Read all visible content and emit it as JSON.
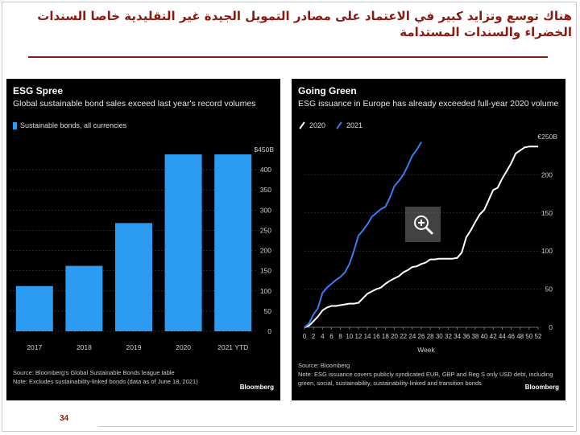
{
  "header": {
    "title": "هناك توسع وتزايد كبير في الاعتماد على مصادر التمويل الجيدة غير التقليدية خاصا السندات الخضراء والسندات المستدامة"
  },
  "page_number": "34",
  "colors": {
    "heading": "#8b1a10",
    "bar": "#2b9cf2",
    "series_2020": "#ffffff",
    "series_2021": "#3a7bf0",
    "panel_bg": "#000000"
  },
  "left_panel": {
    "title": "ESG Spree",
    "subtitle": "Global sustainable bond sales exceed last year's record volumes",
    "legend": "Sustainable bonds, all currencies",
    "footnote1": "Source: Bloomberg's Global Sustainable Bonds league table",
    "footnote2": "Note: Excludes sustainability-linked bonds (data as of June 18, 2021)",
    "brand": "Bloomberg"
  },
  "right_panel": {
    "title": "Going Green",
    "subtitle": "ESG issuance in Europe has already exceeded full-year 2020 volume",
    "legend_2020": "2020",
    "legend_2021": "2021",
    "xlabel": "Week",
    "footnote1": "Source: Bloomberg",
    "footnote2": "Note: ESG issuance covers publicly syndicated EUR, GBP and Reg S only USD debt, including",
    "footnote3": "green, social, sustainability, sustainability-linked and transition bonds",
    "brand": "Bloomberg",
    "zoom_icon": "magnifier-plus-icon"
  },
  "chart_data": [
    {
      "type": "bar",
      "title": "ESG Spree",
      "categories": [
        "2017",
        "2018",
        "2019",
        "2020",
        "2021 YTD"
      ],
      "series": [
        {
          "name": "Sustainable bonds, all currencies",
          "values": [
            112,
            162,
            268,
            438,
            438
          ]
        }
      ],
      "ylim": [
        0,
        450
      ],
      "yticks": [
        "0",
        "50",
        "100",
        "150",
        "200",
        "250",
        "300",
        "350",
        "400"
      ],
      "ytop_label": "$450B",
      "axis_side": "right",
      "grid": true
    },
    {
      "type": "line",
      "title": "Going Green",
      "xlabel": "Week",
      "xticks": [
        0,
        2,
        4,
        6,
        8,
        10,
        12,
        14,
        16,
        18,
        20,
        22,
        24,
        26,
        28,
        30,
        32,
        34,
        36,
        38,
        40,
        42,
        44,
        46,
        48,
        50,
        52
      ],
      "xlim": [
        0,
        52
      ],
      "ylim": [
        0,
        250
      ],
      "yticks": [
        "0",
        "50",
        "100",
        "150",
        "200"
      ],
      "ytop_label": "€250B",
      "axis_side": "right",
      "grid": true,
      "series": [
        {
          "name": "2020",
          "x": [
            0,
            1,
            2,
            3,
            4,
            5,
            6,
            7,
            8,
            9,
            10,
            11,
            12,
            13,
            14,
            15,
            16,
            17,
            18,
            19,
            20,
            21,
            22,
            23,
            24,
            25,
            26,
            27,
            28,
            29,
            30,
            31,
            32,
            33,
            34,
            35,
            36,
            37,
            38,
            39,
            40,
            41,
            42,
            43,
            44,
            45,
            46,
            47,
            48,
            49,
            50,
            51,
            52
          ],
          "y": [
            0,
            2,
            8,
            14,
            22,
            26,
            28,
            28,
            29,
            30,
            31,
            31,
            32,
            38,
            44,
            47,
            50,
            52,
            57,
            61,
            64,
            67,
            72,
            75,
            79,
            80,
            83,
            85,
            89,
            89,
            90,
            90,
            90,
            90,
            91,
            98,
            118,
            127,
            138,
            148,
            154,
            167,
            180,
            183,
            195,
            205,
            215,
            228,
            232,
            236,
            237,
            237,
            237
          ]
        },
        {
          "name": "2021",
          "x": [
            0,
            1,
            2,
            3,
            4,
            5,
            6,
            7,
            8,
            9,
            10,
            11,
            12,
            13,
            14,
            15,
            16,
            17,
            18,
            19,
            20,
            21,
            22,
            23,
            24,
            25,
            26
          ],
          "y": [
            0,
            5,
            17,
            25,
            45,
            52,
            57,
            62,
            66,
            72,
            83,
            100,
            120,
            127,
            135,
            145,
            150,
            155,
            158,
            170,
            185,
            192,
            200,
            212,
            225,
            233,
            243
          ]
        }
      ]
    }
  ]
}
